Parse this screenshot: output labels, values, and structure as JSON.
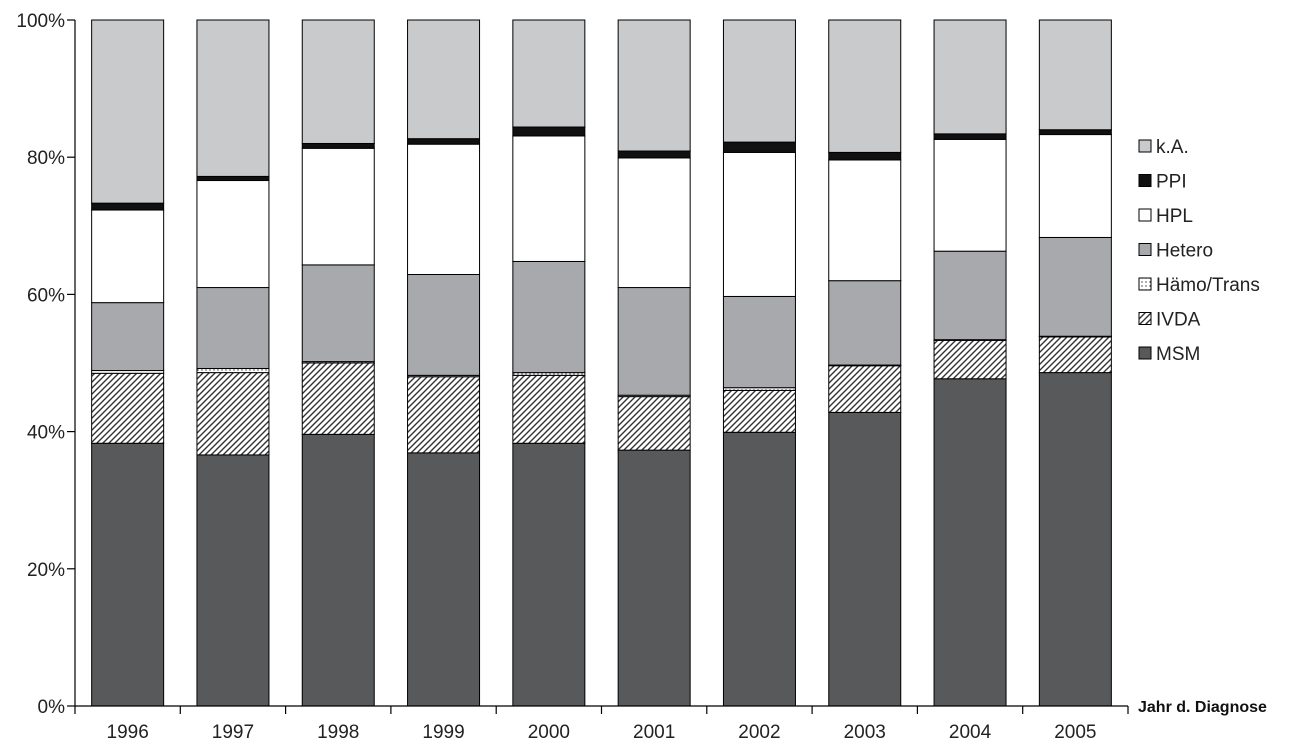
{
  "chart_data": {
    "type": "bar",
    "stacked": true,
    "percent": true,
    "title": "",
    "xlabel": "Jahr d. Diagnose",
    "ylabel": "",
    "ylim": [
      0,
      100
    ],
    "yticks": [
      "0%",
      "20%",
      "40%",
      "60%",
      "80%",
      "100%"
    ],
    "categories": [
      "1996",
      "1997",
      "1998",
      "1999",
      "2000",
      "2001",
      "2002",
      "2003",
      "2004",
      "2005"
    ],
    "legend_position": "right",
    "grid": false,
    "series": [
      {
        "name": "MSM",
        "color": "#58595b",
        "pattern": "solid",
        "values": [
          38.3,
          36.6,
          39.6,
          36.9,
          38.3,
          37.3,
          39.9,
          42.8,
          47.7,
          48.6
        ]
      },
      {
        "name": "IVDA",
        "color": "#ffffff",
        "pattern": "diagonal-hatch",
        "values": [
          10.2,
          12.0,
          10.4,
          11.1,
          9.9,
          7.8,
          6.1,
          6.8,
          5.6,
          5.2
        ]
      },
      {
        "name": "Hämo/Trans",
        "color": "#ffffff",
        "pattern": "dotted",
        "values": [
          0.4,
          0.6,
          0.2,
          0.2,
          0.4,
          0.2,
          0.4,
          0.1,
          0.1,
          0.1
        ]
      },
      {
        "name": "Hetero",
        "color": "#a7a9ac",
        "pattern": "solid",
        "values": [
          9.9,
          11.8,
          14.1,
          14.7,
          16.2,
          15.7,
          13.3,
          12.3,
          12.9,
          14.4
        ]
      },
      {
        "name": "HPL",
        "color": "#ffffff",
        "pattern": "solid",
        "values": [
          13.5,
          15.6,
          17.0,
          19.0,
          18.3,
          18.9,
          21.0,
          17.6,
          16.3,
          15.0
        ]
      },
      {
        "name": "PPI",
        "color": "#111111",
        "pattern": "solid",
        "values": [
          1.0,
          0.6,
          0.7,
          0.8,
          1.3,
          1.0,
          1.5,
          1.1,
          0.8,
          0.7
        ]
      },
      {
        "name": "k.A.",
        "color": "#c9cacc",
        "pattern": "solid",
        "values": [
          26.7,
          22.8,
          18.0,
          17.3,
          15.6,
          19.1,
          17.8,
          19.3,
          16.6,
          16.0
        ]
      }
    ]
  }
}
